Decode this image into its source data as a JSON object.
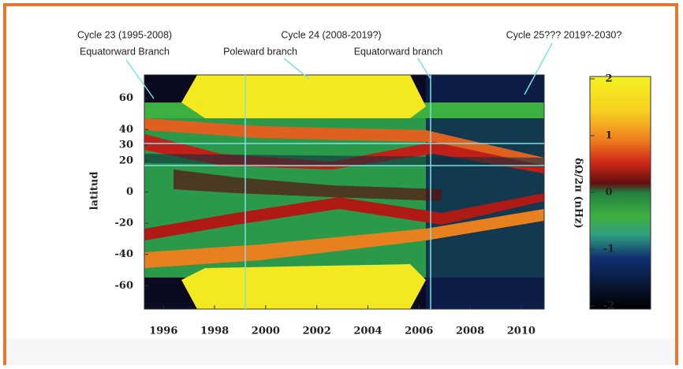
{
  "chart_data": {
    "type": "heatmap",
    "annotations": [
      "Cycle 23 (1995-2008)",
      "Equatorward Branch",
      "Cycle 24 (2008-2019?)",
      "Poleward branch",
      "Equatorward branch",
      "Cycle 25??? 2019?-2030?"
    ],
    "ylabel": "latitud",
    "colorbar_label": "δΩ/2π (nHz)",
    "xlim": [
      1995.25,
      2010.9
    ],
    "xticks": [
      1996,
      1998,
      2000,
      2002,
      2004,
      2006,
      2008,
      2010
    ],
    "ylim": [
      -75,
      75
    ],
    "yticks": [
      60,
      40,
      30,
      20,
      0,
      -20,
      -40,
      -60
    ],
    "clim": [
      -2,
      2
    ],
    "cticks": [
      2,
      1,
      0,
      -1,
      -2
    ]
  }
}
